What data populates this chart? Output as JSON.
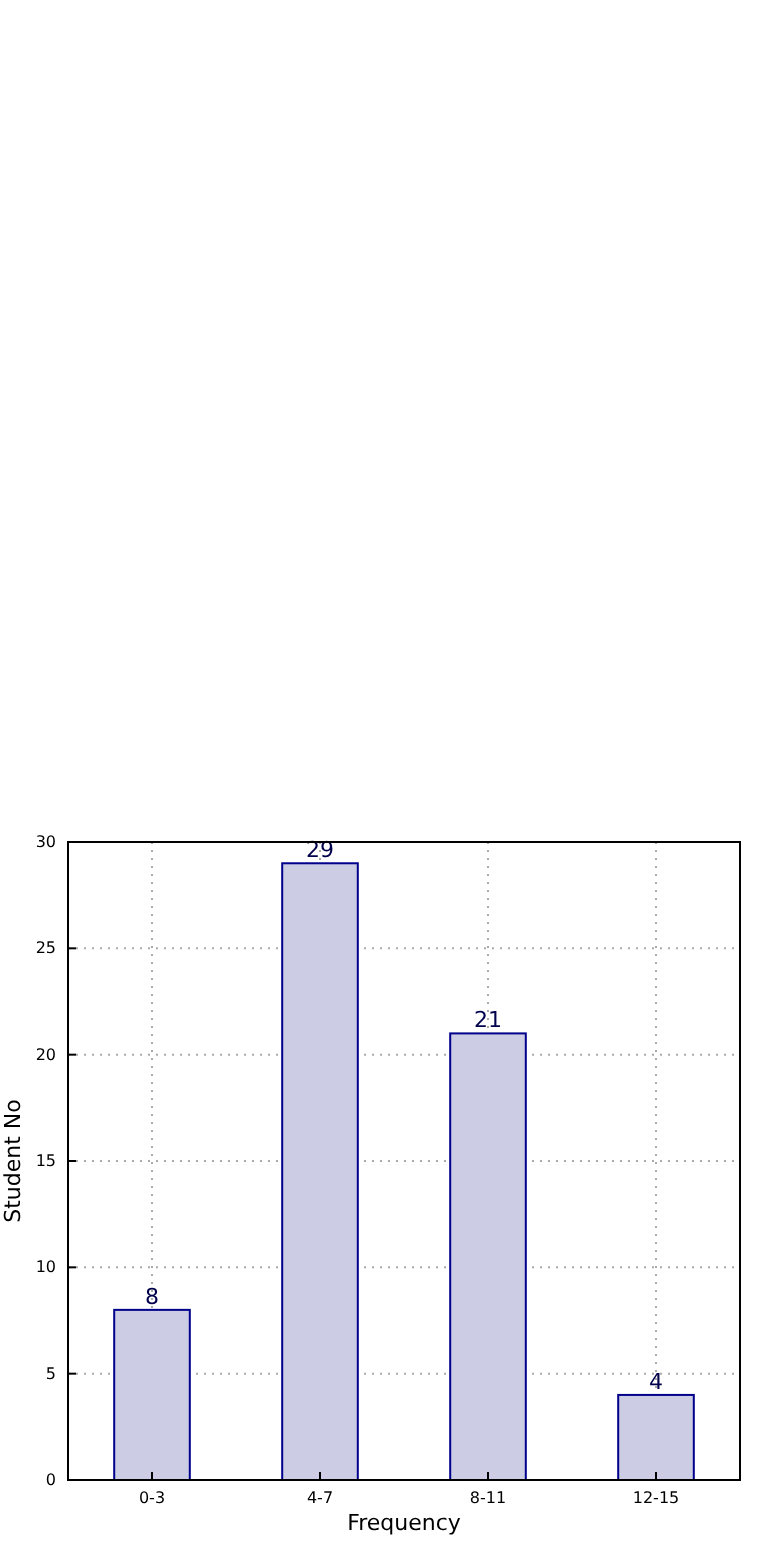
{
  "chart_data": {
    "type": "bar",
    "xlabel": "Frequency",
    "ylabel": "Student No",
    "categories": [
      "0-3",
      "4-7",
      "8-11",
      "12-15"
    ],
    "values": [
      8,
      29,
      21,
      4
    ],
    "color": "#ccccE5",
    "ylim": [
      0,
      30
    ],
    "yticks": [
      0,
      5,
      10,
      15,
      20,
      25,
      30
    ],
    "grid": true,
    "data_labels": true
  }
}
